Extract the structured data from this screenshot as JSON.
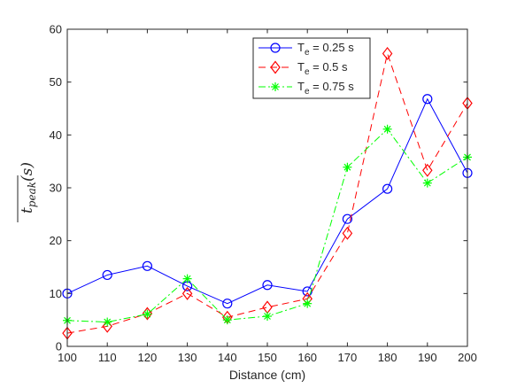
{
  "chart_data": {
    "type": "line",
    "title": "",
    "xlabel": "Distance (cm)",
    "ylabel": {
      "base": "t",
      "sub": "peak",
      "arg": "(s)"
    },
    "xlim": [
      100,
      200
    ],
    "ylim": [
      0,
      60
    ],
    "xticks": [
      100,
      110,
      120,
      130,
      140,
      150,
      160,
      170,
      180,
      190,
      200
    ],
    "yticks": [
      0,
      10,
      20,
      30,
      40,
      50,
      60
    ],
    "x": [
      100,
      110,
      120,
      130,
      140,
      150,
      160,
      170,
      180,
      190,
      200
    ],
    "grid": false,
    "legend_position": "top-right",
    "series": [
      {
        "name": "T_e = 0.25 s",
        "legend": {
          "pre": "T",
          "sub": "e",
          "post": " = 0.25 s"
        },
        "color": "#0000ff",
        "line_style": "solid",
        "marker": "circle",
        "values": [
          10.0,
          13.5,
          15.2,
          11.4,
          8.1,
          11.6,
          10.4,
          24.1,
          29.8,
          46.8,
          32.8
        ]
      },
      {
        "name": "T_e = 0.5 s",
        "legend": {
          "pre": "T",
          "sub": "e",
          "post": " = 0.5 s"
        },
        "color": "#ff0000",
        "line_style": "dashed",
        "marker": "diamond",
        "values": [
          2.5,
          3.8,
          6.2,
          10.0,
          5.5,
          7.4,
          9.0,
          21.4,
          55.4,
          33.3,
          46.0
        ]
      },
      {
        "name": "T_e = 0.75 s",
        "legend": {
          "pre": "T",
          "sub": "e",
          "post": " = 0.75 s"
        },
        "color": "#00ff00",
        "line_style": "dashdot",
        "marker": "asterisk",
        "values": [
          4.9,
          4.6,
          6.1,
          12.8,
          5.0,
          5.7,
          8.1,
          33.9,
          41.1,
          30.9,
          35.8
        ]
      }
    ]
  }
}
